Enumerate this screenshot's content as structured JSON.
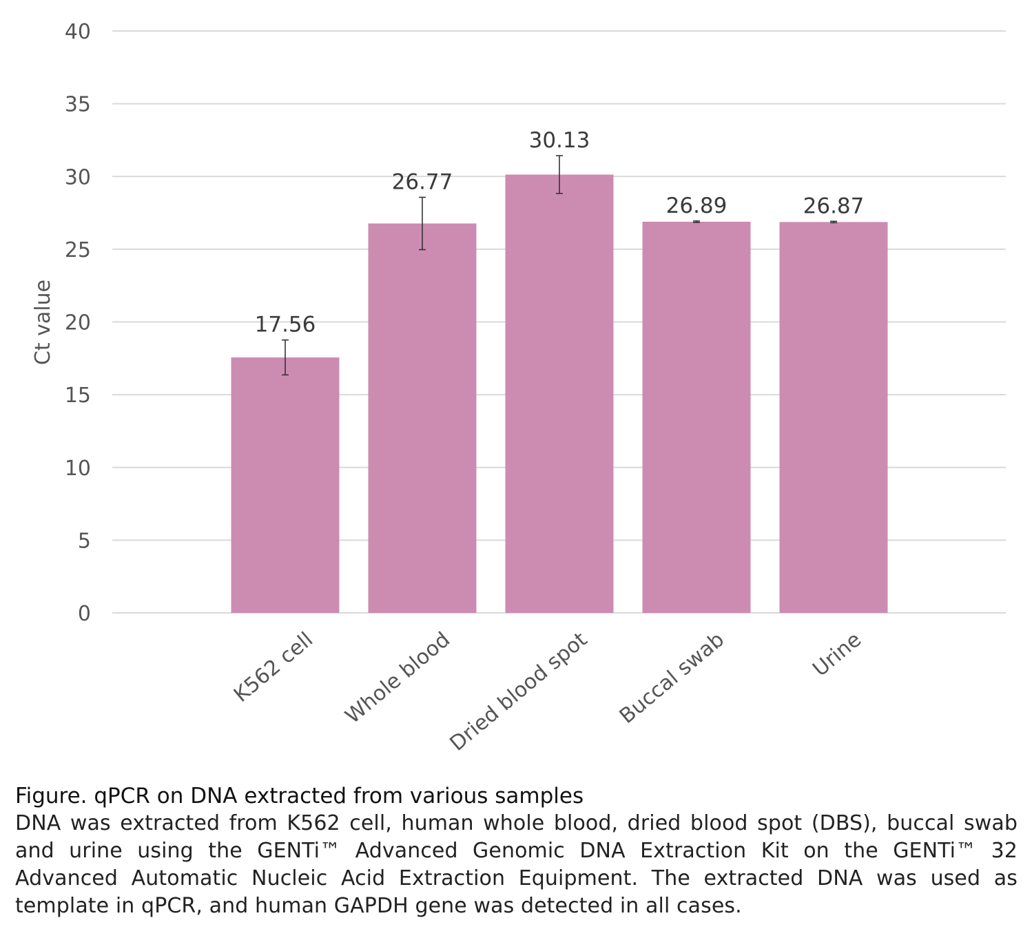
{
  "chart_data": {
    "type": "bar",
    "categories": [
      "K562 cell",
      "Whole blood",
      "Dried blood spot",
      "Buccal swab",
      "Urine"
    ],
    "values": [
      17.56,
      26.77,
      30.13,
      26.89,
      26.87
    ],
    "value_labels": [
      "17.56",
      "26.77",
      "30.13",
      "26.89",
      "26.87"
    ],
    "error_bars": [
      1.2,
      1.8,
      1.3,
      0.05,
      0.05
    ],
    "ylabel": "Ct value",
    "xlabel": "",
    "ylim": [
      0,
      40
    ],
    "yticks": [
      "0",
      "5",
      "10",
      "15",
      "20",
      "25",
      "30",
      "35",
      "40"
    ],
    "grid": true,
    "bar_color": "#cc8cb2"
  },
  "caption": {
    "title": "Figure. qPCR on DNA extracted from various samples",
    "body": "DNA was extracted from K562 cell, human whole blood, dried blood spot (DBS), buccal swab and urine using the GENTi™ Advanced Genomic DNA Extraction Kit on the GENTi™ 32 Advanced Automatic Nucleic Acid Extraction Equipment. The extracted DNA was used as template in qPCR, and human GAPDH gene was detected in all cases."
  }
}
